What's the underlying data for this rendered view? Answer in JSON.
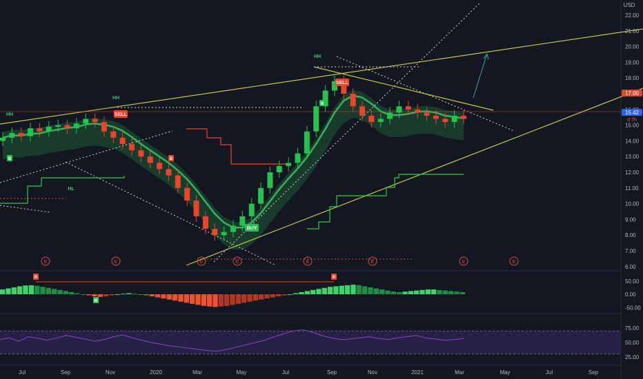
{
  "chart_data": [
    {
      "type": "candlestick",
      "currency": "USD",
      "y_ticks": [
        "22.00",
        "21.00",
        "20.00",
        "19.00",
        "18.00",
        "17.00",
        "16.00",
        "15.00",
        "14.00",
        "13.00",
        "12.00",
        "11.00",
        "10.00",
        "9.00",
        "8.00",
        "7.00",
        "6.00"
      ],
      "last_price_label": "15.42",
      "countdown_label": "d 7h",
      "level_label": "17.00",
      "x_ticks": [
        "Jul",
        "Sep",
        "Nov",
        "2020",
        "Mar",
        "May",
        "Jul",
        "Sep",
        "Nov",
        "2021",
        "Mar",
        "May",
        "Jul",
        "Sep"
      ],
      "labels": [
        {
          "text": "HH"
        },
        {
          "text": "HH"
        },
        {
          "text": "HH"
        },
        {
          "text": "HL"
        }
      ],
      "signals": [
        {
          "text": "SELL",
          "kind": "sell"
        },
        {
          "text": "SELL",
          "kind": "sell"
        },
        {
          "text": "BUY",
          "kind": "buy"
        }
      ],
      "small_badges": [
        {
          "text": "B",
          "kind": "buy"
        },
        {
          "text": "B",
          "kind": "sell"
        },
        {
          "text": "B",
          "kind": "buy"
        }
      ],
      "earnings_marker": "E",
      "close_series_approx": [
        14.2,
        14.5,
        14.3,
        14.8,
        14.6,
        14.9,
        15.0,
        14.8,
        15.1,
        15.4,
        15.2,
        14.6,
        14.2,
        13.8,
        13.4,
        13.0,
        12.6,
        12.2,
        11.8,
        11.0,
        10.2,
        9.2,
        8.4,
        8.0,
        8.2,
        8.6,
        9.2,
        10.0,
        11.0,
        12.0,
        12.4,
        12.6,
        13.2,
        14.6,
        16.2,
        17.2,
        17.8,
        17.0,
        16.2,
        15.6,
        15.2,
        15.4,
        15.8,
        16.2,
        16.0,
        15.8,
        15.6,
        15.4,
        15.2,
        15.6,
        15.4
      ]
    },
    {
      "type": "histogram",
      "y_ticks": [
        "50.00",
        "0.00",
        "-50.00"
      ],
      "badges": [
        {
          "text": "R"
        },
        {
          "text": "M"
        },
        {
          "text": "R"
        }
      ],
      "values_approx": [
        18,
        22,
        26,
        30,
        33,
        34,
        32,
        28,
        24,
        20,
        16,
        12,
        8,
        4,
        0,
        -4,
        -8,
        -10,
        -8,
        -4,
        0,
        2,
        4,
        2,
        0,
        -4,
        -8,
        -12,
        -16,
        -20,
        -24,
        -28,
        -32,
        -36,
        -40,
        -44,
        -46,
        -48,
        -46,
        -44,
        -40,
        -36,
        -32,
        -28,
        -24,
        -20,
        -16,
        -12,
        -8,
        -4,
        0,
        4,
        8,
        12,
        16,
        20,
        24,
        28,
        30,
        32,
        34,
        36,
        34,
        30,
        26,
        22,
        18,
        14,
        10,
        8,
        10,
        12,
        14,
        16,
        18,
        18,
        16,
        14,
        12,
        10,
        8
      ]
    },
    {
      "type": "line",
      "y_ticks": [
        "75.00",
        "50.00",
        "25.00"
      ],
      "band": [
        30,
        70
      ],
      "values_approx": [
        55,
        58,
        52,
        60,
        57,
        54,
        58,
        62,
        59,
        56,
        52,
        55,
        60,
        63,
        58,
        54,
        50,
        47,
        44,
        42,
        40,
        38,
        36,
        35,
        38,
        42,
        46,
        50,
        54,
        60,
        65,
        70,
        72,
        68,
        62,
        58,
        55,
        56,
        58,
        60,
        57,
        55,
        58,
        60,
        62,
        58,
        56,
        54,
        55,
        57
      ]
    }
  ]
}
